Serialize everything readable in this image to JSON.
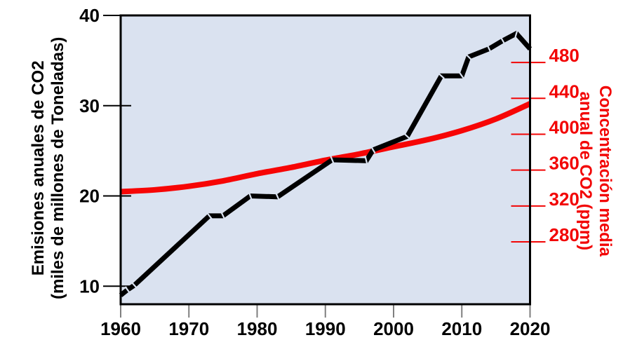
{
  "chart_data": {
    "type": "line",
    "x_axis": {
      "min": 1960,
      "max": 2020,
      "ticks": [
        1960,
        1970,
        1980,
        1990,
        2000,
        2010,
        2020
      ],
      "tick_color": "#7f7f7f",
      "label_color": "#000000"
    },
    "left_axis": {
      "title_line1": "Emisiones anuales de CO2",
      "title_line2": "(miles de millones de Toneladas)",
      "min": 8,
      "max": 40,
      "ticks": [
        10,
        20,
        30,
        40
      ],
      "color": "#000000"
    },
    "right_axis": {
      "title_line1": "Concentración media",
      "title_line2": "anual de CO2 (ppm)",
      "min": 210.5,
      "max": 532.4,
      "ticks": [
        280,
        320,
        360,
        400,
        440,
        480
      ],
      "color": "#f20505"
    },
    "series": [
      {
        "name": "Concentración media anual de CO2 (ppm)",
        "axis": "right",
        "color": "#f70505",
        "width": 8,
        "smooth": true,
        "notches": false,
        "points": [
          [
            1960,
            336
          ],
          [
            1965,
            338
          ],
          [
            1970,
            342
          ],
          [
            1975,
            348
          ],
          [
            1980,
            356
          ],
          [
            1985,
            363
          ],
          [
            1990,
            371
          ],
          [
            1995,
            378
          ],
          [
            2000,
            386
          ],
          [
            2005,
            394
          ],
          [
            2010,
            404
          ],
          [
            2015,
            417
          ],
          [
            2020,
            434
          ]
        ]
      },
      {
        "name": "Emisiones anuales de CO2 (miles de millones de Toneladas)",
        "axis": "left",
        "color": "#000000",
        "width": 7,
        "smooth": false,
        "notches": true,
        "points": [
          [
            1960,
            9.0
          ],
          [
            1961,
            9.6
          ],
          [
            1962,
            10.1
          ],
          [
            1973,
            17.8
          ],
          [
            1975,
            17.8
          ],
          [
            1979,
            20.0
          ],
          [
            1983,
            19.9
          ],
          [
            1991,
            24.0
          ],
          [
            1996,
            23.9
          ],
          [
            1997,
            25.1
          ],
          [
            2002,
            26.6
          ],
          [
            2007,
            33.3
          ],
          [
            2010,
            33.3
          ],
          [
            2011,
            35.4
          ],
          [
            2014,
            36.3
          ],
          [
            2016,
            37.2
          ],
          [
            2018,
            38.0
          ],
          [
            2020,
            36.3
          ]
        ]
      }
    ],
    "plot_bg": "#dae2f0",
    "border_color": "#000000",
    "grid": false,
    "legend": "none"
  }
}
